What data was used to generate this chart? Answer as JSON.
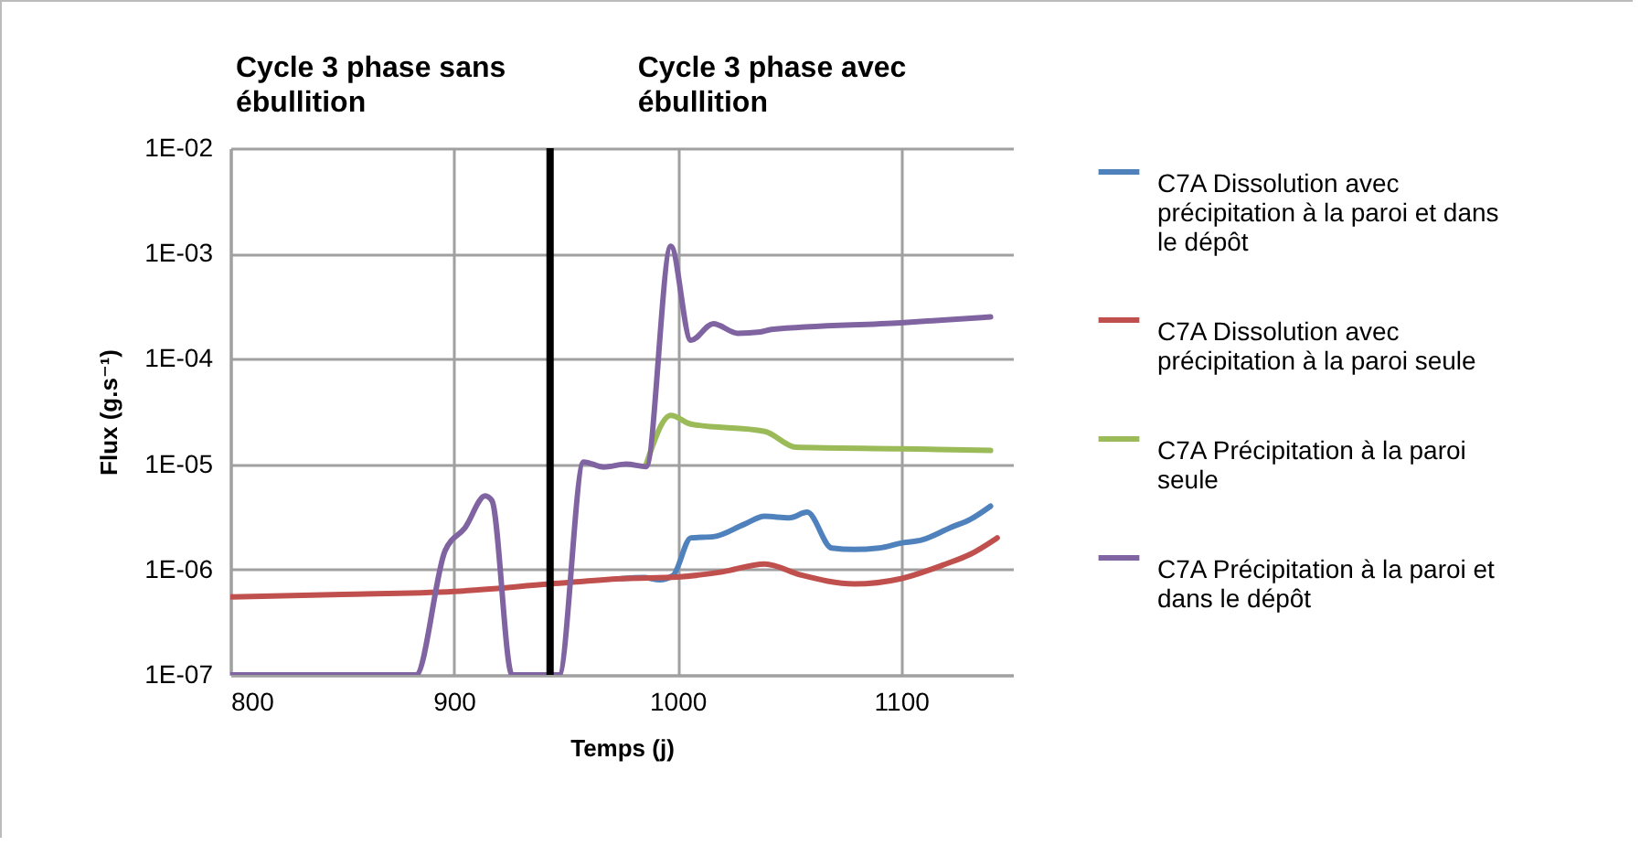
{
  "chart_data": {
    "type": "line",
    "xlabel": "Temps (j)",
    "ylabel": "Flux (g.s⁻¹)",
    "xlim": [
      800,
      1150
    ],
    "xticks": [
      800,
      900,
      1000,
      1100
    ],
    "ylim": [
      1e-07,
      0.01
    ],
    "yticks": [
      {
        "value": 1e-07,
        "label": "1E-07"
      },
      {
        "value": 1e-06,
        "label": "1E-06"
      },
      {
        "value": 1e-05,
        "label": "1E-05"
      },
      {
        "value": 0.0001,
        "label": "1E-04"
      },
      {
        "value": 0.001,
        "label": "1E-03"
      },
      {
        "value": 0.01,
        "label": "1E-02"
      }
    ],
    "log": "y",
    "grid": true,
    "legend": "right",
    "marker": "none",
    "line_style": "solid",
    "ref_lines": [
      {
        "axis": "x",
        "value": 943,
        "color": "#000000"
      }
    ],
    "annotations": [
      "Cycle 3 phase sans ébullition",
      "Cycle 3 phase avec ébullition"
    ],
    "series": [
      {
        "name": "C7A Dissolution avec précipitation à la paroi et dans le dépôt",
        "color": "#4f81bd",
        "x": [
          975,
          985,
          992,
          998,
          1006,
          1016,
          1030,
          1039,
          1050,
          1058,
          1069,
          1079,
          1090,
          1101,
          1109,
          1122,
          1131,
          1140
        ],
        "values": [
          8.2e-07,
          8.4e-07,
          8e-07,
          8.8e-07,
          2e-06,
          2.05e-06,
          2.7e-06,
          3.2e-06,
          3.1e-06,
          3.5e-06,
          1.6e-06,
          1.55e-06,
          1.6e-06,
          1.8e-06,
          1.9e-06,
          2.5e-06,
          3e-06,
          4e-06
        ]
      },
      {
        "name": "C7A Dissolution avec précipitation à la paroi seule",
        "color": "#c0504d",
        "x": [
          800,
          850,
          900,
          943,
          975,
          1000,
          1020,
          1039,
          1055,
          1079,
          1100,
          1120,
          1131,
          1143
        ],
        "values": [
          5.5e-07,
          5.8e-07,
          6.2e-07,
          7.3e-07,
          8.2e-07,
          8.5e-07,
          9.5e-07,
          1.13e-06,
          8.9e-07,
          7.3e-07,
          8.2e-07,
          1.13e-06,
          1.4e-06,
          2e-06
        ]
      },
      {
        "name": "C7A Précipitation à la paroi seule",
        "color": "#9bbb59",
        "x": [
          986,
          997,
          1006,
          1039,
          1053,
          1100,
          1140
        ],
        "values": [
          1e-05,
          2.9e-05,
          2.4e-05,
          2.05e-05,
          1.45e-05,
          1.4e-05,
          1.35e-05
        ]
      },
      {
        "name": "C7A Précipitation à la paroi et dans le dépôt",
        "color": "#8064a2",
        "x": [
          800,
          883,
          896,
          905,
          914,
          917,
          926,
          947,
          958,
          967,
          977,
          986,
          997,
          1006,
          1016,
          1027,
          1037,
          1042,
          1100,
          1140
        ],
        "values": [
          1e-07,
          1e-07,
          1.5e-06,
          2.5e-06,
          5e-06,
          4.5e-06,
          1e-07,
          1e-07,
          1.05e-05,
          9.4e-06,
          1e-05,
          9.5e-06,
          0.00117,
          0.00015,
          0.000215,
          0.000175,
          0.00018,
          0.00019,
          0.00022,
          0.00025
        ]
      }
    ]
  }
}
